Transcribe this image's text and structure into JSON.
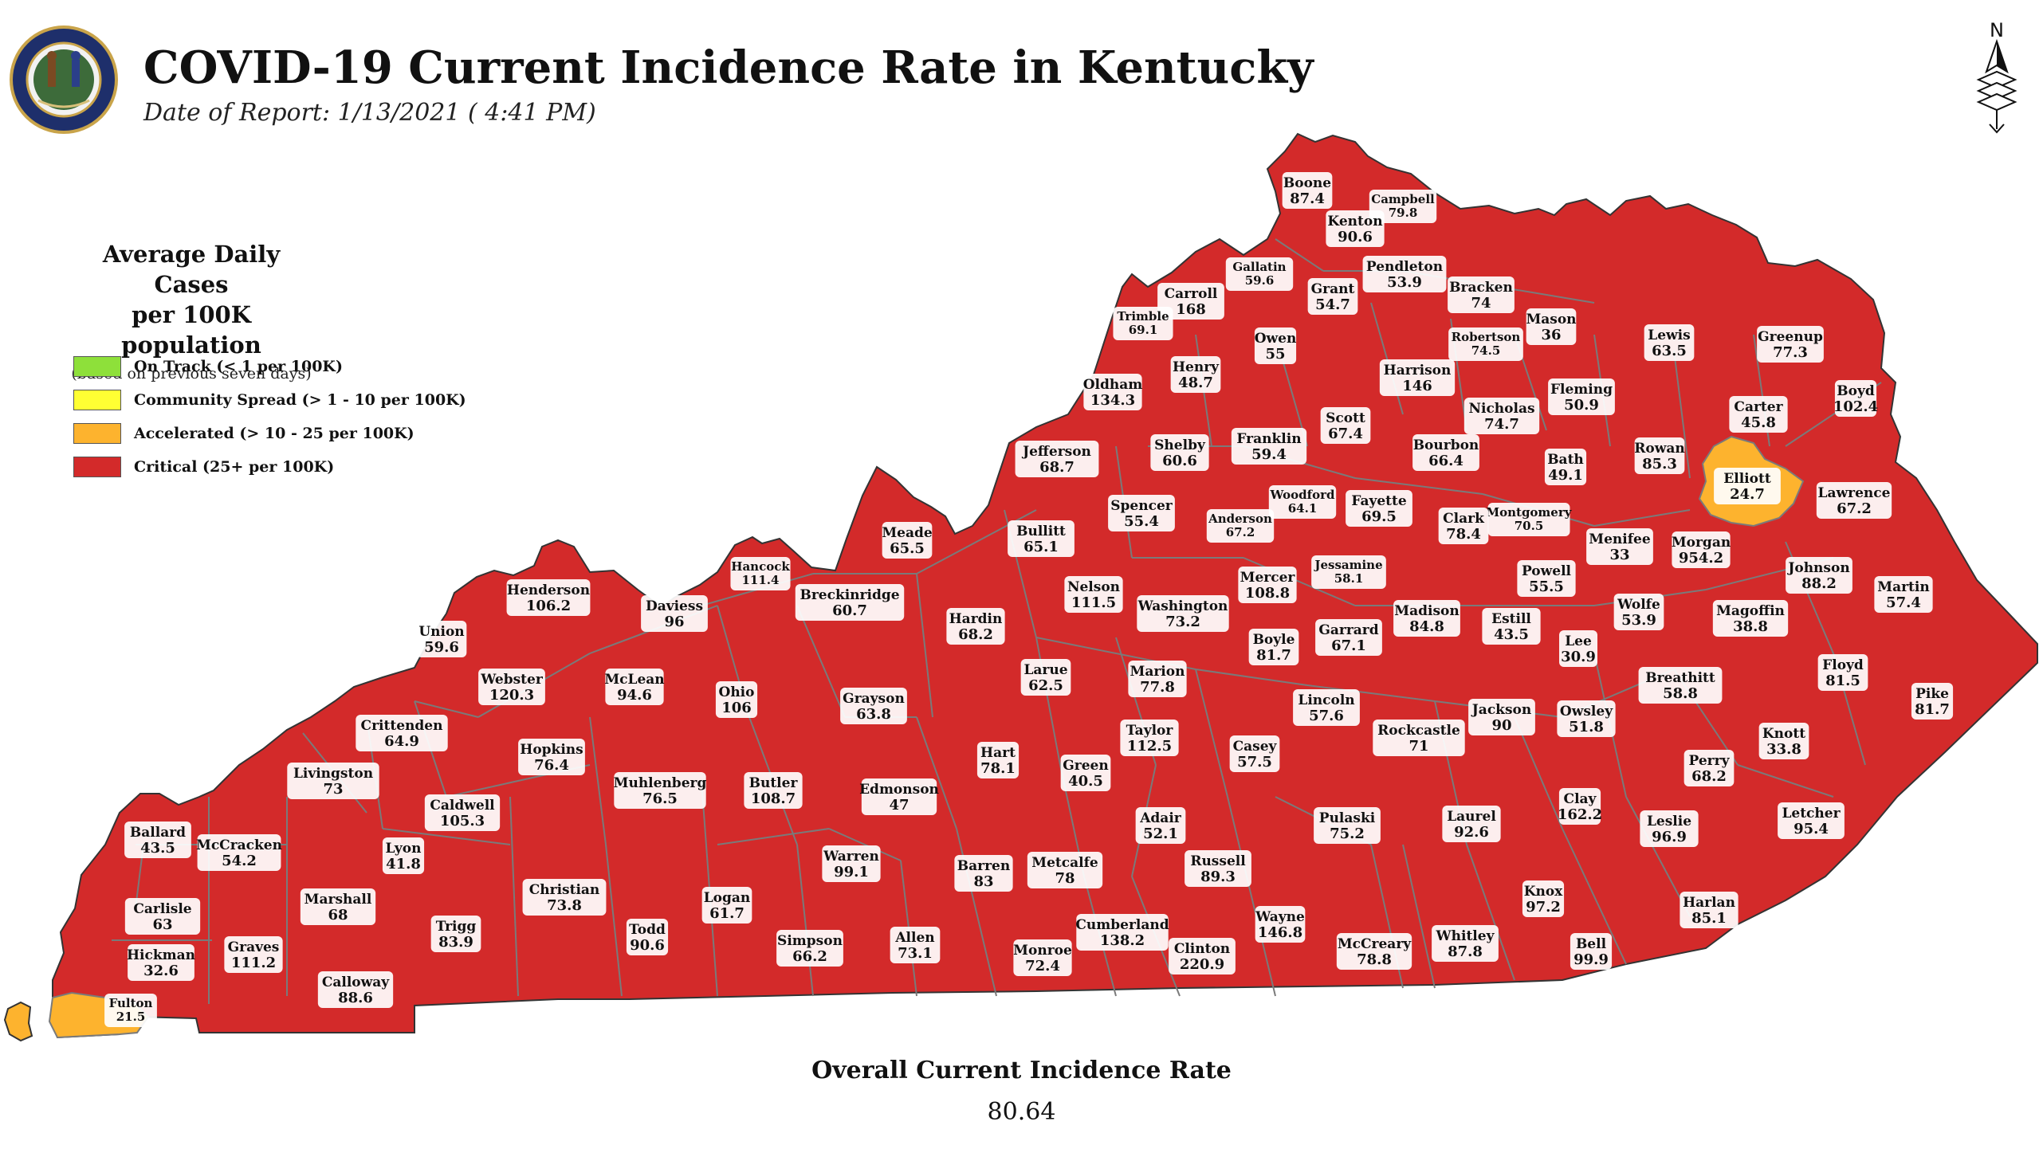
{
  "header": {
    "title": "COVID-19 Current Incidence Rate in Kentucky",
    "subtitle": "Date of Report: 1/13/2021 ( 4:41 PM)",
    "seal_text": "COMMONWEALTH OF KENTUCKY",
    "seal_motto": "UNITED WE STAND DIVIDED WE FALL",
    "north_label": "N"
  },
  "legend": {
    "title_line1": "Average Daily Cases",
    "title_line2": "per 100K population",
    "note": "(based on previous seven days)",
    "items": [
      {
        "label": "On Track (< 1 per 100K)",
        "color": "#8ee03a"
      },
      {
        "label": "Community Spread (> 1 - 10 per 100K)",
        "color": "#ffff33"
      },
      {
        "label": "Accelerated (> 10 - 25 per 100K)",
        "color": "#fdb32e"
      },
      {
        "label": "Critical (25+ per 100K)",
        "color": "#d32a2a"
      }
    ]
  },
  "overall": {
    "title": "Overall Current Incidence Rate",
    "value": "80.64"
  },
  "colors": {
    "critical": "#d32a2a",
    "accelerated": "#fdb32e",
    "county_border": "#7a7a7a"
  },
  "counties": [
    {
      "name": "Boone",
      "value": "87.4",
      "tier": "critical"
    },
    {
      "name": "Campbell",
      "value": "79.8",
      "tier": "critical"
    },
    {
      "name": "Kenton",
      "value": "90.6",
      "tier": "critical"
    },
    {
      "name": "Gallatin",
      "value": "59.6",
      "tier": "critical"
    },
    {
      "name": "Pendleton",
      "value": "53.9",
      "tier": "critical"
    },
    {
      "name": "Carroll",
      "value": "168",
      "tier": "critical"
    },
    {
      "name": "Grant",
      "value": "54.7",
      "tier": "critical"
    },
    {
      "name": "Bracken",
      "value": "74",
      "tier": "critical"
    },
    {
      "name": "Trimble",
      "value": "69.1",
      "tier": "critical"
    },
    {
      "name": "Mason",
      "value": "36",
      "tier": "critical"
    },
    {
      "name": "Owen",
      "value": "55",
      "tier": "critical"
    },
    {
      "name": "Robertson",
      "value": "74.5",
      "tier": "critical"
    },
    {
      "name": "Lewis",
      "value": "63.5",
      "tier": "critical"
    },
    {
      "name": "Greenup",
      "value": "77.3",
      "tier": "critical"
    },
    {
      "name": "Henry",
      "value": "48.7",
      "tier": "critical"
    },
    {
      "name": "Harrison",
      "value": "146",
      "tier": "critical"
    },
    {
      "name": "Oldham",
      "value": "134.3",
      "tier": "critical"
    },
    {
      "name": "Fleming",
      "value": "50.9",
      "tier": "critical"
    },
    {
      "name": "Boyd",
      "value": "102.4",
      "tier": "critical"
    },
    {
      "name": "Nicholas",
      "value": "74.7",
      "tier": "critical"
    },
    {
      "name": "Scott",
      "value": "67.4",
      "tier": "critical"
    },
    {
      "name": "Carter",
      "value": "45.8",
      "tier": "critical"
    },
    {
      "name": "Franklin",
      "value": "59.4",
      "tier": "critical"
    },
    {
      "name": "Shelby",
      "value": "60.6",
      "tier": "critical"
    },
    {
      "name": "Bourbon",
      "value": "66.4",
      "tier": "critical"
    },
    {
      "name": "Jefferson",
      "value": "68.7",
      "tier": "critical"
    },
    {
      "name": "Rowan",
      "value": "85.3",
      "tier": "critical"
    },
    {
      "name": "Bath",
      "value": "49.1",
      "tier": "critical"
    },
    {
      "name": "Elliott",
      "value": "24.7",
      "tier": "accelerated"
    },
    {
      "name": "Woodford",
      "value": "64.1",
      "tier": "critical"
    },
    {
      "name": "Lawrence",
      "value": "67.2",
      "tier": "critical"
    },
    {
      "name": "Spencer",
      "value": "55.4",
      "tier": "critical"
    },
    {
      "name": "Fayette",
      "value": "69.5",
      "tier": "critical"
    },
    {
      "name": "Anderson",
      "value": "67.2",
      "tier": "critical"
    },
    {
      "name": "Montgomery",
      "value": "70.5",
      "tier": "critical"
    },
    {
      "name": "Clark",
      "value": "78.4",
      "tier": "critical"
    },
    {
      "name": "Meade",
      "value": "65.5",
      "tier": "critical"
    },
    {
      "name": "Bullitt",
      "value": "65.1",
      "tier": "critical"
    },
    {
      "name": "Menifee",
      "value": "33",
      "tier": "critical"
    },
    {
      "name": "Morgan",
      "value": "954.2",
      "tier": "critical"
    },
    {
      "name": "Hancock",
      "value": "111.4",
      "tier": "critical"
    },
    {
      "name": "Jessamine",
      "value": "58.1",
      "tier": "critical"
    },
    {
      "name": "Mercer",
      "value": "108.8",
      "tier": "critical"
    },
    {
      "name": "Johnson",
      "value": "88.2",
      "tier": "critical"
    },
    {
      "name": "Powell",
      "value": "55.5",
      "tier": "critical"
    },
    {
      "name": "Henderson",
      "value": "106.2",
      "tier": "critical"
    },
    {
      "name": "Nelson",
      "value": "111.5",
      "tier": "critical"
    },
    {
      "name": "Martin",
      "value": "57.4",
      "tier": "critical"
    },
    {
      "name": "Breckinridge",
      "value": "60.7",
      "tier": "critical"
    },
    {
      "name": "Washington",
      "value": "73.2",
      "tier": "critical"
    },
    {
      "name": "Madison",
      "value": "84.8",
      "tier": "critical"
    },
    {
      "name": "Daviess",
      "value": "96",
      "tier": "critical"
    },
    {
      "name": "Wolfe",
      "value": "53.9",
      "tier": "critical"
    },
    {
      "name": "Magoffin",
      "value": "38.8",
      "tier": "critical"
    },
    {
      "name": "Estill",
      "value": "43.5",
      "tier": "critical"
    },
    {
      "name": "Hardin",
      "value": "68.2",
      "tier": "critical"
    },
    {
      "name": "Garrard",
      "value": "67.1",
      "tier": "critical"
    },
    {
      "name": "Union",
      "value": "59.6",
      "tier": "critical"
    },
    {
      "name": "Boyle",
      "value": "81.7",
      "tier": "critical"
    },
    {
      "name": "Lee",
      "value": "30.9",
      "tier": "critical"
    },
    {
      "name": "Floyd",
      "value": "81.5",
      "tier": "critical"
    },
    {
      "name": "Larue",
      "value": "62.5",
      "tier": "critical"
    },
    {
      "name": "Marion",
      "value": "77.8",
      "tier": "critical"
    },
    {
      "name": "Breathitt",
      "value": "58.8",
      "tier": "critical"
    },
    {
      "name": "Webster",
      "value": "120.3",
      "tier": "critical"
    },
    {
      "name": "McLean",
      "value": "94.6",
      "tier": "critical"
    },
    {
      "name": "Ohio",
      "value": "106",
      "tier": "critical"
    },
    {
      "name": "Pike",
      "value": "81.7",
      "tier": "critical"
    },
    {
      "name": "Grayson",
      "value": "63.8",
      "tier": "critical"
    },
    {
      "name": "Lincoln",
      "value": "57.6",
      "tier": "critical"
    },
    {
      "name": "Jackson",
      "value": "90",
      "tier": "critical"
    },
    {
      "name": "Owsley",
      "value": "51.8",
      "tier": "critical"
    },
    {
      "name": "Crittenden",
      "value": "64.9",
      "tier": "critical"
    },
    {
      "name": "Taylor",
      "value": "112.5",
      "tier": "critical"
    },
    {
      "name": "Rockcastle",
      "value": "71",
      "tier": "critical"
    },
    {
      "name": "Knott",
      "value": "33.8",
      "tier": "critical"
    },
    {
      "name": "Hopkins",
      "value": "76.4",
      "tier": "critical"
    },
    {
      "name": "Casey",
      "value": "57.5",
      "tier": "critical"
    },
    {
      "name": "Hart",
      "value": "78.1",
      "tier": "critical"
    },
    {
      "name": "Perry",
      "value": "68.2",
      "tier": "critical"
    },
    {
      "name": "Livingston",
      "value": "73",
      "tier": "critical"
    },
    {
      "name": "Green",
      "value": "40.5",
      "tier": "critical"
    },
    {
      "name": "Butler",
      "value": "108.7",
      "tier": "critical"
    },
    {
      "name": "Muhlenberg",
      "value": "76.5",
      "tier": "critical"
    },
    {
      "name": "Edmonson",
      "value": "47",
      "tier": "critical"
    },
    {
      "name": "Clay",
      "value": "162.2",
      "tier": "critical"
    },
    {
      "name": "Letcher",
      "value": "95.4",
      "tier": "critical"
    },
    {
      "name": "Caldwell",
      "value": "105.3",
      "tier": "critical"
    },
    {
      "name": "Ballard",
      "value": "43.5",
      "tier": "critical"
    },
    {
      "name": "Adair",
      "value": "52.1",
      "tier": "critical"
    },
    {
      "name": "Pulaski",
      "value": "75.2",
      "tier": "critical"
    },
    {
      "name": "Laurel",
      "value": "92.6",
      "tier": "critical"
    },
    {
      "name": "Leslie",
      "value": "96.9",
      "tier": "critical"
    },
    {
      "name": "McCracken",
      "value": "54.2",
      "tier": "critical"
    },
    {
      "name": "Lyon",
      "value": "41.8",
      "tier": "critical"
    },
    {
      "name": "Warren",
      "value": "99.1",
      "tier": "critical"
    },
    {
      "name": "Russell",
      "value": "89.3",
      "tier": "critical"
    },
    {
      "name": "Barren",
      "value": "83",
      "tier": "critical"
    },
    {
      "name": "Metcalfe",
      "value": "78",
      "tier": "critical"
    },
    {
      "name": "Christian",
      "value": "73.8",
      "tier": "critical"
    },
    {
      "name": "Knox",
      "value": "97.2",
      "tier": "critical"
    },
    {
      "name": "Marshall",
      "value": "68",
      "tier": "critical"
    },
    {
      "name": "Logan",
      "value": "61.7",
      "tier": "critical"
    },
    {
      "name": "Harlan",
      "value": "85.1",
      "tier": "critical"
    },
    {
      "name": "Carlisle",
      "value": "63",
      "tier": "critical"
    },
    {
      "name": "Trigg",
      "value": "83.9",
      "tier": "critical"
    },
    {
      "name": "Todd",
      "value": "90.6",
      "tier": "critical"
    },
    {
      "name": "Wayne",
      "value": "146.8",
      "tier": "critical"
    },
    {
      "name": "Cumberland",
      "value": "138.2",
      "tier": "critical"
    },
    {
      "name": "Allen",
      "value": "73.1",
      "tier": "critical"
    },
    {
      "name": "Whitley",
      "value": "87.8",
      "tier": "critical"
    },
    {
      "name": "Simpson",
      "value": "66.2",
      "tier": "critical"
    },
    {
      "name": "Graves",
      "value": "111.2",
      "tier": "critical"
    },
    {
      "name": "Hickman",
      "value": "32.6",
      "tier": "critical"
    },
    {
      "name": "Monroe",
      "value": "72.4",
      "tier": "critical"
    },
    {
      "name": "Clinton",
      "value": "220.9",
      "tier": "critical"
    },
    {
      "name": "McCreary",
      "value": "78.8",
      "tier": "critical"
    },
    {
      "name": "Bell",
      "value": "99.9",
      "tier": "critical"
    },
    {
      "name": "Calloway",
      "value": "88.6",
      "tier": "critical"
    },
    {
      "name": "Fulton",
      "value": "21.5",
      "tier": "accelerated"
    }
  ]
}
